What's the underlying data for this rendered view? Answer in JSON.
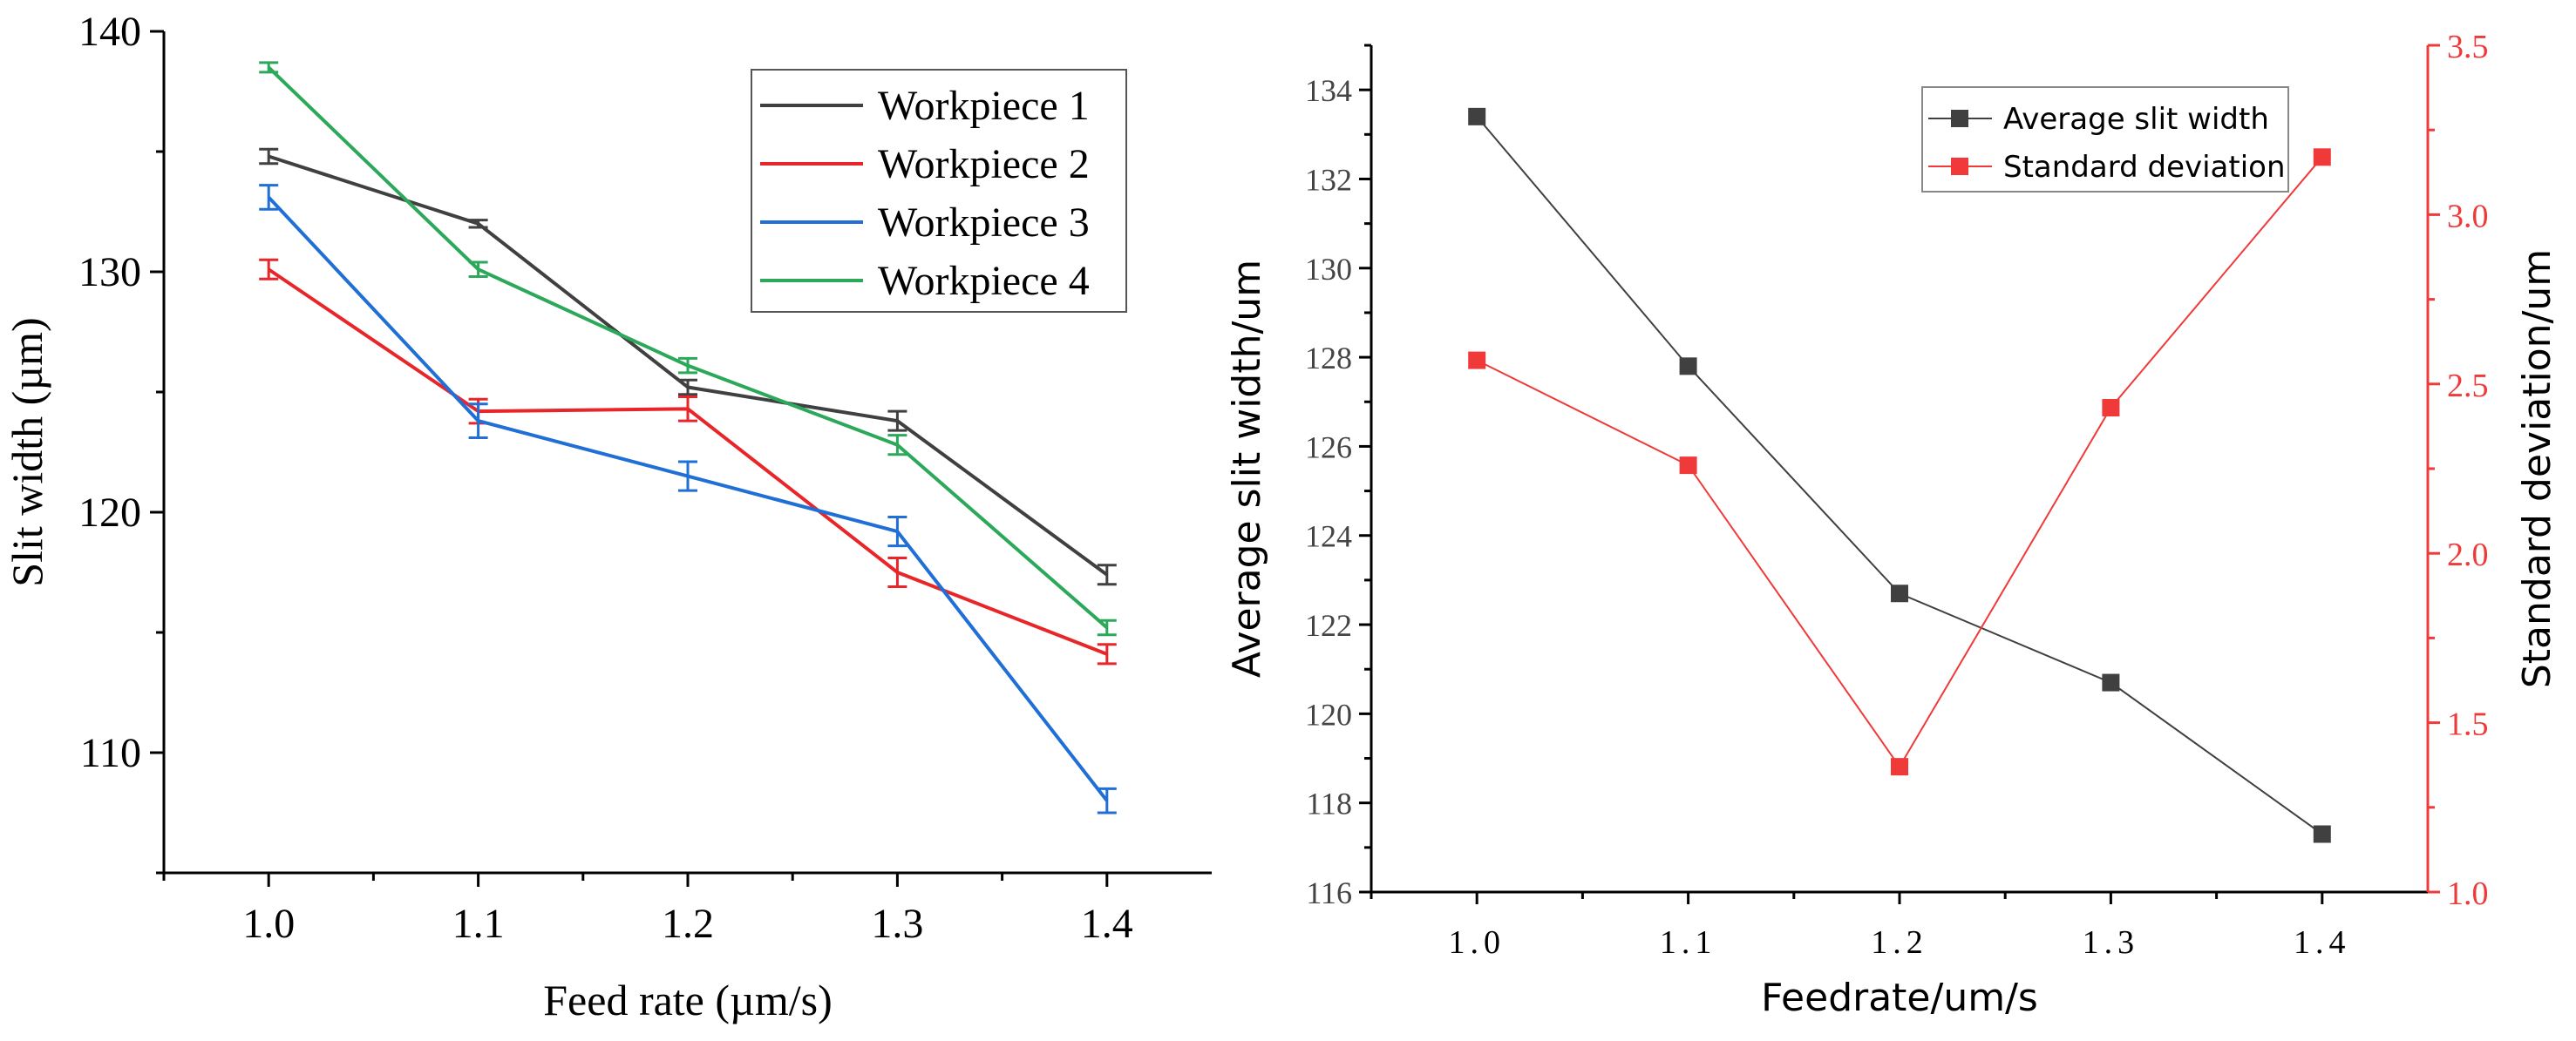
{
  "chart_data": [
    {
      "type": "line",
      "xlabel": "Feed rate (µm/s)",
      "ylabel": "Slit width (µm)",
      "xlim": [
        0.95,
        1.45
      ],
      "ylim": [
        105,
        140
      ],
      "x": [
        1.0,
        1.1,
        1.2,
        1.3,
        1.4
      ],
      "x_tick_labels": [
        "1.0",
        "1.1",
        "1.2",
        "1.3",
        "1.4"
      ],
      "y_ticks": [
        110,
        120,
        130,
        140
      ],
      "y_tick_labels": [
        "110",
        "120",
        "130",
        "140"
      ],
      "legend_position": "top-right",
      "series": [
        {
          "name": "Workpiece 1",
          "color": "#404040",
          "values": [
            134.8,
            132.0,
            125.2,
            123.8,
            117.4
          ],
          "errors": [
            0.3,
            0.15,
            0.3,
            0.4,
            0.4
          ]
        },
        {
          "name": "Workpiece 2",
          "color": "#e8262a",
          "values": [
            130.1,
            124.2,
            124.3,
            117.5,
            114.1
          ],
          "errors": [
            0.4,
            0.5,
            0.5,
            0.6,
            0.4
          ]
        },
        {
          "name": "Workpiece 3",
          "color": "#1f6fd6",
          "values": [
            133.1,
            123.8,
            121.5,
            119.2,
            108.0
          ],
          "errors": [
            0.5,
            0.7,
            0.6,
            0.6,
            0.5
          ]
        },
        {
          "name": "Workpiece 4",
          "color": "#2ca85a",
          "values": [
            138.5,
            130.1,
            126.1,
            122.8,
            115.2
          ],
          "errors": [
            0.2,
            0.3,
            0.3,
            0.4,
            0.3
          ]
        }
      ]
    },
    {
      "type": "line",
      "xlabel": "Feedrate/um/s",
      "ylabel": "Average slit width/um",
      "y2label": "Standard deviation/um",
      "xlim": [
        0.95,
        1.45
      ],
      "ylim": [
        116,
        135
      ],
      "y2lim": [
        1.0,
        3.5
      ],
      "x": [
        1.0,
        1.1,
        1.2,
        1.3,
        1.4
      ],
      "x_tick_labels": [
        "1.0",
        "1.1",
        "1.2",
        "1.3",
        "1.4"
      ],
      "y_ticks": [
        116,
        118,
        120,
        122,
        124,
        126,
        128,
        130,
        132,
        134
      ],
      "y_tick_labels": [
        "116",
        "118",
        "120",
        "122",
        "124",
        "126",
        "128",
        "130",
        "132",
        "134"
      ],
      "y2_ticks": [
        1.0,
        1.5,
        2.0,
        2.5,
        3.0,
        3.5
      ],
      "y2_tick_labels": [
        "1.0",
        "1.5",
        "2.0",
        "2.5",
        "3.0",
        "3.5"
      ],
      "legend_position": "top-right",
      "series": [
        {
          "name": "Average slit width",
          "axis": "left",
          "color": "#404040",
          "values": [
            133.4,
            127.8,
            122.7,
            120.7,
            117.3
          ]
        },
        {
          "name": "Standard deviation",
          "axis": "right",
          "color": "#f03a3a",
          "values": [
            2.57,
            2.26,
            1.37,
            2.43,
            3.17
          ]
        }
      ]
    }
  ]
}
